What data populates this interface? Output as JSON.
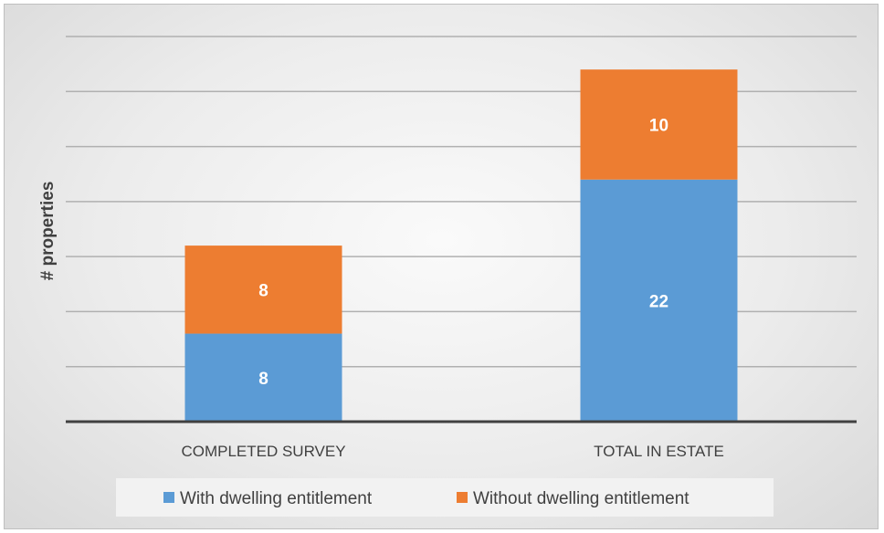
{
  "chart_data": {
    "type": "bar",
    "stacked": true,
    "title": "",
    "xlabel": "",
    "ylabel": "# properties",
    "categories": [
      "COMPLETED SURVEY",
      "TOTAL IN ESTATE"
    ],
    "series": [
      {
        "name": "With dwelling entitlement",
        "values": [
          8,
          22
        ],
        "color": "#5b9bd5"
      },
      {
        "name": "Without dwelling entitlement",
        "values": [
          8,
          10
        ],
        "color": "#ed7d31"
      }
    ],
    "ylim": [
      0,
      35
    ],
    "grid": true,
    "legend_position": "bottom",
    "data_labels": true
  }
}
